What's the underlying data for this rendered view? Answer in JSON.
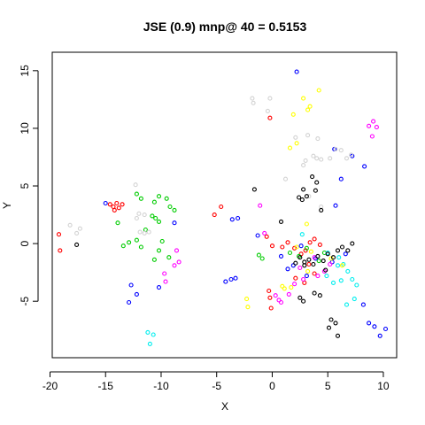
{
  "chart_data": {
    "type": "scatter",
    "title": "JSE (0.9) mnp@ 40 = 0.5153",
    "xlabel": "X",
    "ylabel": "Y",
    "xlim": [
      -19.8,
      11.2
    ],
    "ylim": [
      -9.9,
      16.6
    ],
    "x_ticks": [
      -20,
      -15,
      -10,
      -5,
      0,
      5,
      10
    ],
    "y_ticks": [
      -5,
      0,
      5,
      10,
      15
    ],
    "x_tick_labels": [
      "-20",
      "-15",
      "-10",
      "-5",
      "0",
      "5",
      "10"
    ],
    "y_tick_labels": [
      "-5",
      "0",
      "5",
      "10",
      "15"
    ],
    "grid": false,
    "legend": "none",
    "series": [
      {
        "color": "#ff0000",
        "points": [
          [
            -19.2,
            0.8
          ],
          [
            -19.1,
            -0.6
          ],
          [
            -14.6,
            3.4
          ],
          [
            -14.3,
            3.2
          ],
          [
            -14.0,
            3.5
          ],
          [
            -13.8,
            3.1
          ],
          [
            -13.5,
            3.4
          ],
          [
            -14.2,
            2.9
          ],
          [
            -5.2,
            2.5
          ],
          [
            -4.6,
            3.2
          ],
          [
            -0.2,
            10.9
          ],
          [
            -0.5,
            0.6
          ],
          [
            0.0,
            -0.2
          ],
          [
            -0.3,
            -4.1
          ],
          [
            -0.2,
            -4.7
          ],
          [
            -0.1,
            -5.6
          ],
          [
            0.9,
            -0.3
          ],
          [
            1.4,
            0.1
          ],
          [
            2.0,
            -0.4
          ],
          [
            2.6,
            -0.9
          ],
          [
            3.0,
            -0.6
          ],
          [
            3.4,
            0.1
          ],
          [
            3.8,
            0.4
          ],
          [
            4.3,
            -0.1
          ],
          [
            2.1,
            -3.0
          ],
          [
            2.9,
            -3.4
          ],
          [
            3.8,
            -2.6
          ],
          [
            3.3,
            -1.8
          ]
        ]
      },
      {
        "color": "#00cc00",
        "points": [
          [
            -13.4,
            -0.2
          ],
          [
            -12.9,
            0.1
          ],
          [
            -12.2,
            0.3
          ],
          [
            -11.8,
            -0.3
          ],
          [
            -11.4,
            1.2
          ],
          [
            -13.9,
            1.8
          ],
          [
            -12.2,
            4.3
          ],
          [
            -11.8,
            3.9
          ],
          [
            -10.6,
            3.6
          ],
          [
            -10.2,
            4.1
          ],
          [
            -10.8,
            2.4
          ],
          [
            -10.5,
            2.2
          ],
          [
            -10.2,
            1.9
          ],
          [
            -9.9,
            0.2
          ],
          [
            -10.2,
            -0.6
          ],
          [
            -10.6,
            -1.4
          ],
          [
            -9.5,
            3.9
          ],
          [
            -9.2,
            3.2
          ],
          [
            -8.8,
            2.9
          ],
          [
            -9.3,
            -1.2
          ],
          [
            -1.2,
            -1.0
          ],
          [
            -0.9,
            -1.3
          ],
          [
            1.6,
            -0.8
          ],
          [
            2.4,
            -1.1
          ],
          [
            3.1,
            -0.4
          ],
          [
            4.2,
            -1.5
          ],
          [
            4.7,
            -0.8
          ]
        ]
      },
      {
        "color": "#0000ff",
        "points": [
          [
            -15.0,
            3.5
          ],
          [
            -12.7,
            -3.6
          ],
          [
            -12.2,
            -4.4
          ],
          [
            -12.9,
            -5.1
          ],
          [
            -10.2,
            -3.8
          ],
          [
            -8.8,
            1.8
          ],
          [
            -4.2,
            -3.3
          ],
          [
            -3.7,
            -3.1
          ],
          [
            -3.3,
            -3.0
          ],
          [
            -3.6,
            2.1
          ],
          [
            -3.1,
            2.2
          ],
          [
            -1.3,
            0.7
          ],
          [
            0.8,
            -1.1
          ],
          [
            2.2,
            14.9
          ],
          [
            5.6,
            8.2
          ],
          [
            6.2,
            5.6
          ],
          [
            5.7,
            3.3
          ],
          [
            7.2,
            7.6
          ],
          [
            8.3,
            6.7
          ],
          [
            6.6,
            -0.9
          ],
          [
            5.4,
            -1.6
          ],
          [
            2.6,
            -0.2
          ],
          [
            1.9,
            -1.9
          ],
          [
            1.4,
            -2.2
          ],
          [
            3.9,
            -1.3
          ],
          [
            8.2,
            -5.3
          ],
          [
            8.7,
            -6.9
          ],
          [
            9.2,
            -7.2
          ],
          [
            9.7,
            -8.0
          ],
          [
            10.2,
            -7.4
          ],
          [
            3.1,
            -2.8
          ]
        ]
      },
      {
        "color": "#00eeee",
        "points": [
          [
            -11.2,
            -7.7
          ],
          [
            -10.7,
            -7.9
          ],
          [
            -11.0,
            -8.7
          ],
          [
            6.0,
            -1.2
          ],
          [
            6.4,
            -1.8
          ],
          [
            6.8,
            -2.4
          ],
          [
            7.2,
            -3.1
          ],
          [
            7.6,
            -3.6
          ],
          [
            6.2,
            -3.2
          ],
          [
            5.9,
            -1.9
          ],
          [
            6.7,
            -5.3
          ],
          [
            7.4,
            -4.8
          ],
          [
            5.5,
            -3.4
          ],
          [
            4.9,
            -2.8
          ],
          [
            2.7,
            0.8
          ],
          [
            5.0,
            -0.8
          ]
        ]
      },
      {
        "color": "#ff00ff",
        "points": [
          [
            -9.7,
            -2.6
          ],
          [
            -9.6,
            -3.3
          ],
          [
            -8.4,
            -1.6
          ],
          [
            -8.6,
            -0.6
          ],
          [
            -8.8,
            -1.9
          ],
          [
            -1.1,
            3.3
          ],
          [
            -0.7,
            0.9
          ],
          [
            0.6,
            -4.9
          ],
          [
            0.3,
            -4.5
          ],
          [
            0.8,
            -5.1
          ],
          [
            1.5,
            -4.4
          ],
          [
            2.8,
            -3.1
          ],
          [
            4.7,
            -2.4
          ],
          [
            5.2,
            -1.8
          ],
          [
            4.1,
            -2.8
          ],
          [
            8.7,
            10.2
          ],
          [
            9.1,
            10.6
          ],
          [
            9.4,
            10.1
          ],
          [
            9.0,
            9.3
          ],
          [
            3.8,
            -1.2
          ],
          [
            2.5,
            -2.1
          ],
          [
            2.0,
            -3.5
          ]
        ]
      },
      {
        "color": "#ffff00",
        "points": [
          [
            -2.3,
            -4.8
          ],
          [
            -2.2,
            -5.5
          ],
          [
            0.9,
            -3.7
          ],
          [
            1.1,
            -3.9
          ],
          [
            1.7,
            -3.8
          ],
          [
            1.6,
            8.3
          ],
          [
            2.2,
            8.7
          ],
          [
            2.8,
            12.6
          ],
          [
            3.2,
            11.6
          ],
          [
            3.4,
            11.9
          ],
          [
            4.2,
            13.3
          ],
          [
            1.9,
            11.2
          ],
          [
            3.1,
            1.7
          ],
          [
            2.2,
            -0.3
          ],
          [
            3.5,
            -0.7
          ],
          [
            5.3,
            -1.3
          ],
          [
            6.3,
            -1.9
          ],
          [
            3.2,
            -2.4
          ]
        ]
      },
      {
        "color": "#d3d3d3",
        "points": [
          [
            -18.2,
            1.6
          ],
          [
            -17.3,
            1.3
          ],
          [
            -17.6,
            0.9
          ],
          [
            -12.3,
            5.1
          ],
          [
            -12.2,
            2.2
          ],
          [
            -12.0,
            2.6
          ],
          [
            -11.5,
            2.5
          ],
          [
            -11.9,
            1.0
          ],
          [
            -11.5,
            0.9
          ],
          [
            -11.1,
            1.0
          ],
          [
            -1.8,
            12.6
          ],
          [
            -1.7,
            12.2
          ],
          [
            -0.4,
            11.5
          ],
          [
            -0.2,
            12.6
          ],
          [
            2.1,
            9.2
          ],
          [
            2.8,
            6.8
          ],
          [
            3.0,
            7.2
          ],
          [
            3.2,
            9.4
          ],
          [
            3.7,
            7.6
          ],
          [
            4.1,
            9.1
          ],
          [
            4.0,
            7.4
          ],
          [
            4.4,
            7.3
          ],
          [
            5.2,
            7.4
          ],
          [
            5.7,
            8.2
          ],
          [
            6.2,
            8.1
          ],
          [
            6.7,
            7.4
          ],
          [
            7.1,
            7.7
          ],
          [
            3.3,
            4.1
          ],
          [
            4.4,
            3.2
          ],
          [
            1.2,
            5.6
          ]
        ]
      },
      {
        "color": "#000000",
        "points": [
          [
            -17.6,
            -0.1
          ],
          [
            -1.6,
            4.7
          ],
          [
            0.8,
            1.9
          ],
          [
            2.4,
            4.0
          ],
          [
            2.7,
            3.8
          ],
          [
            3.1,
            4.1
          ],
          [
            2.8,
            4.7
          ],
          [
            3.9,
            4.6
          ],
          [
            4.0,
            5.3
          ],
          [
            3.6,
            5.8
          ],
          [
            4.4,
            2.9
          ],
          [
            2.1,
            -1.7
          ],
          [
            2.5,
            -1.2
          ],
          [
            2.9,
            -1.6
          ],
          [
            3.3,
            -1.4
          ],
          [
            3.7,
            -1.8
          ],
          [
            4.1,
            -1.1
          ],
          [
            4.6,
            -1.5
          ],
          [
            5.0,
            -0.9
          ],
          [
            5.5,
            -1.2
          ],
          [
            5.9,
            -0.6
          ],
          [
            6.3,
            -0.3
          ],
          [
            6.8,
            -0.6
          ],
          [
            7.2,
            0.0
          ],
          [
            3.8,
            -4.3
          ],
          [
            4.3,
            -4.5
          ],
          [
            2.5,
            -4.7
          ],
          [
            2.8,
            -5.0
          ],
          [
            5.3,
            -6.6
          ],
          [
            5.7,
            -6.9
          ],
          [
            5.1,
            -7.3
          ],
          [
            5.9,
            -8.0
          ],
          [
            2.9,
            -1.9
          ],
          [
            4.8,
            -2.3
          ]
        ]
      }
    ]
  }
}
